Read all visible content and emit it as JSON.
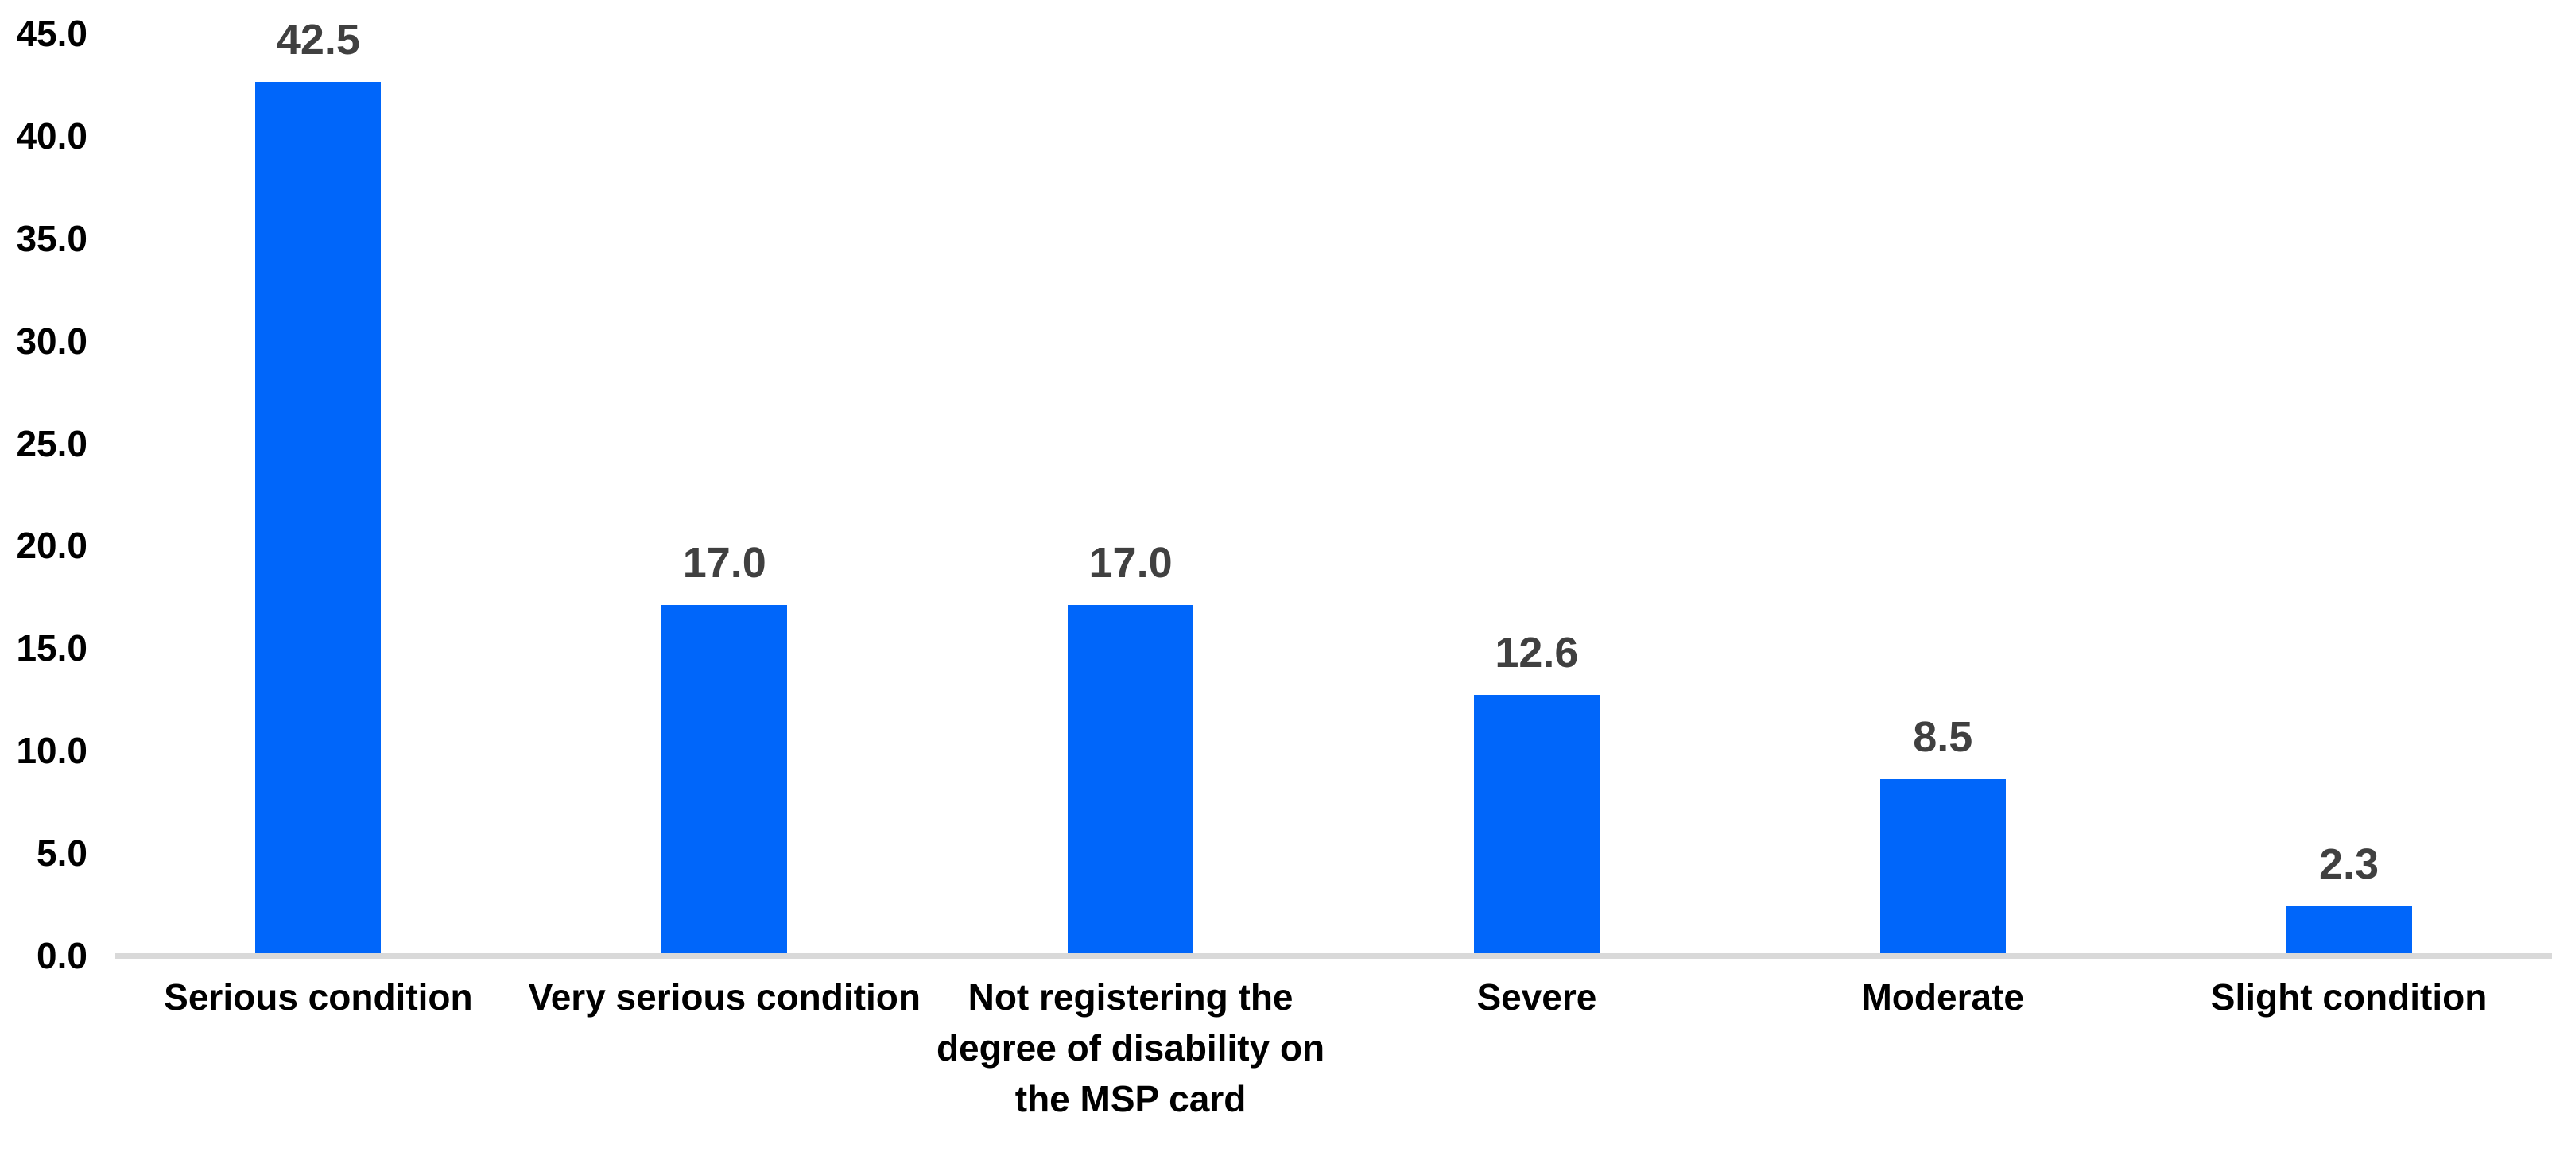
{
  "chart_data": {
    "type": "bar",
    "title": "",
    "xlabel": "",
    "ylabel": "",
    "categories": [
      "Serious condition",
      "Very serious condition",
      "Not registering the degree of disability on the MSP card",
      "Severe",
      "Moderate",
      "Slight condition"
    ],
    "values": [
      42.5,
      17.0,
      17.0,
      12.6,
      8.5,
      2.3
    ],
    "value_labels": [
      "42.5",
      "17.0",
      "17.0",
      "12.6",
      "8.5",
      "2.3"
    ],
    "ylim": [
      0,
      45
    ],
    "ytick_values": [
      45,
      40,
      35,
      30,
      25,
      20,
      15,
      10,
      5,
      0
    ],
    "ytick_labels": [
      "45.0",
      "40.0",
      "35.0",
      "30.0",
      "25.0",
      "20.0",
      "15.0",
      "10.0",
      "5.0",
      "0.0"
    ],
    "grid": false,
    "legend": false,
    "colors": {
      "bar": "#0066FA",
      "axis_line": "#D9D9D9",
      "value_label": "#404040",
      "tick_label": "#000000",
      "category_label": "#000000"
    }
  }
}
